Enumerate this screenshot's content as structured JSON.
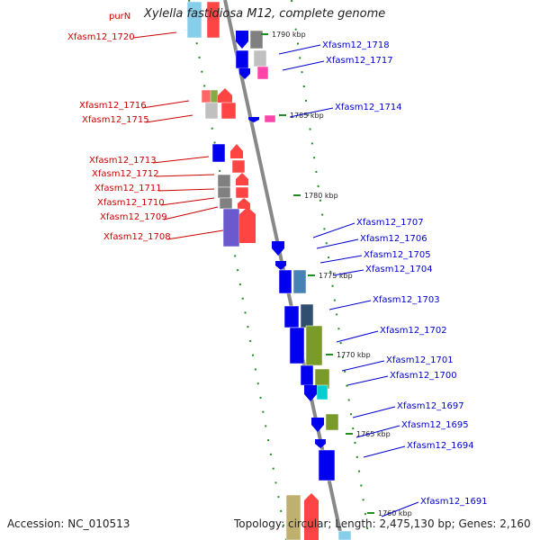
{
  "title": "Xylella fastidiosa M12, complete genome",
  "top_label": "purN",
  "footer": {
    "accession": "Accession: NC_010513",
    "summary": "Topology: circular; Length: 2,475,130 bp; Genes: 2,160"
  },
  "colors": {
    "left_labels": "#cc0000",
    "right_labels": "#0000cc",
    "ticks": "#228b22",
    "backbone": "#888888"
  },
  "scale_ticks": [
    "1790 kbp",
    "1785 kbp",
    "1780 kbp",
    "1775 kbp",
    "1770 kbp",
    "1765 kbp",
    "1760 kbp"
  ],
  "left_genes": [
    "Xfasm12_1720",
    "Xfasm12_1716",
    "Xfasm12_1715",
    "Xfasm12_1713",
    "Xfasm12_1712",
    "Xfasm12_1711",
    "Xfasm12_1710",
    "Xfasm12_1709",
    "Xfasm12_1708"
  ],
  "right_genes": [
    "Xfasm12_1718",
    "Xfasm12_1717",
    "Xfasm12_1714",
    "Xfasm12_1707",
    "Xfasm12_1706",
    "Xfasm12_1705",
    "Xfasm12_1704",
    "Xfasm12_1703",
    "Xfasm12_1702",
    "Xfasm12_1701",
    "Xfasm12_1700",
    "Xfasm12_1697",
    "Xfasm12_1695",
    "Xfasm12_1694",
    "Xfasm12_1691"
  ]
}
